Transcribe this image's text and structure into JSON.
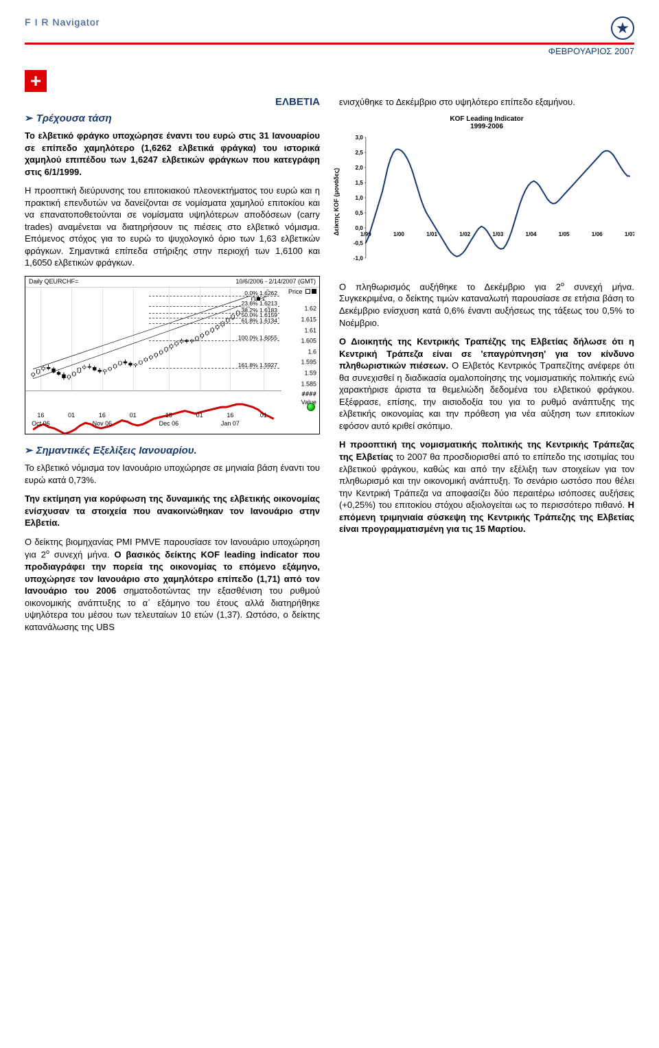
{
  "header": {
    "brand": "F I R  Navigator",
    "date": "ΦΕΒΡΟΥΑΡΙΟΣ 2007"
  },
  "country_label": "ΕΛΒΕΤΙΑ",
  "left": {
    "trend_title": "Τρέχουσα τάση",
    "p1_a": "Το ελβετικό φράγκο υποχώρησε έναντι του ευρώ στις 31 Ιανουαρίου σε επίπεδο χαμηλότερο (1,6262 ελβετικά φράγκα) του ιστορικά χαμηλού επιπέδου των 1,6247 ελβετικών φράγκων που κατεγράφη στις 6/1/1999.",
    "p2": "Η προοπτική διεύρυνσης του επιτοκιακού πλεονεκτήματος του ευρώ και η πρακτική επενδυτών να δανείζονται σε νομίσματα χαμηλού επιτοκίου και να επανατοποθετούνται σε νομίσματα υψηλότερων αποδόσεων (carry trades) αναμένεται να διατηρήσουν τις πιέσεις στο ελβετικό νόμισμα. Επόμενος στόχος για το ευρώ το ψυχολογικό όριο των 1,63 ελβετικών φράγκων. Σημαντικά επίπεδα στήριξης στην περιοχή των 1,6100 και 1,6050 ελβετικών φράγκων.",
    "dev_title": "Σημαντικές Εξελίξεις Ιανουαρίου.",
    "p3": "Το ελβετικό νόμισμα τον Ιανουάριο υποχώρησε σε μηνιαία βάση έναντι του ευρώ κατά 0,73%.",
    "p4": "Την εκτίμηση για κορύφωση της δυναμικής της ελβετικής οικονομίας ενίσχυσαν τα στοιχεία που ανακοινώθηκαν τον Ιανουάριο στην Ελβετία.",
    "p5_a": "Ο δείκτης βιομηχανίας PMI PMVE παρουσίασε τον Ιανουάριο υποχώρηση για 2",
    "p5_sup": "ο",
    "p5_b": " συνεχή μήνα. ",
    "p5_c": "Ο βασικός δείκτης KOF leading indicator που προδιαγράφει την πορεία της οικονομίας το επόμενο εξάμηνο, υποχώρησε τον Ιανουάριο στο χαμηλότερο επίπεδο (1,71) από τον Ιανουάριο του 2006",
    "p5_d": " σηματοδοτώντας την εξασθένιση του ρυθμού οικονομικής ανάπτυξης το α΄ εξάμηνο του έτους αλλά διατηρήθηκε υψηλότερα του μέσου των τελευταίων 10 ετών (1,37). Ωστόσο, ο δείκτης κατανάλωσης της UBS"
  },
  "right": {
    "p1": "ενισχύθηκε το Δεκέμβριο στο υψηλότερο επίπεδο εξαμήνου.",
    "p2_a": "Ο πληθωρισμός αυξήθηκε το Δεκέμβριο για 2",
    "p2_sup": "ο",
    "p2_b": " συνεχή μήνα. Συγκεκριμένα, ο δείκτης τιμών καταναλωτή παρουσίασε σε ετήσια βάση το Δεκέμβριο ενίσχυση κατά 0,6% έναντι αυξήσεως της τάξεως του 0,5% το Νοέμβριο.",
    "p3_a": "Ο Διοικητής της Κεντρικής Τραπέζης της Ελβετίας δήλωσε ότι η Κεντρική Τράπεζα είναι σε 'επαγρύπνηση' για τον κίνδυνο πληθωριστικών πιέσεων.",
    "p3_b": " Ο Ελβετός Κεντρικός Τραπεζίτης ανέφερε ότι θα συνεχισθεί η διαδικασία ομαλοποίησης της νομισματικής πολιτικής ενώ χαρακτήρισε άριστα τα θεμελιώδη δεδομένα του ελβετικού φράγκου. Εξέφρασε, επίσης, την αισιοδοξία του για το ρυθμό ανάπτυξης της ελβετικής οικονομίας και την πρόθεση για νέα αύξηση των επιτοκίων εφόσον αυτό κριθεί σκόπιμο.",
    "p4_a": "Η προοπτική της νομισματικής πολιτικής της Κεντρικής Τράπεζας της Ελβετίας",
    "p4_b": " το 2007 θα προσδιορισθεί από το επίπεδο της ισοτιμίας του ελβετικού φράγκου, καθώς και από την εξέλιξη των στοιχείων για τον πληθωρισμό και την οικονομική ανάπτυξη. Το σενάριο ωστόσο που θέλει την Κεντρική Τράπεζα να αποφασίζει δύο περαιτέρω ισόποσες αυξήσεις (+0,25%) του επιτοκίου στόχου αξιολογείται ως το περισσότερο πιθανό. ",
    "p4_c": "Η επόμενη τριμηνιαία σύσκεψη της Κεντρικής Τράπεζης της Ελβετίας είναι προγραμματισμένη για τις 15 Μαρτίου."
  },
  "price_chart": {
    "title_left": "Daily QEURCHF=",
    "title_right": "10/6/2006 - 2/14/2007 (GMT)",
    "price_label": "Price",
    "value_label": "Value",
    "hash": "####",
    "y_ticks": [
      {
        "v": 1.625,
        "label": ""
      },
      {
        "v": 1.62,
        "label": "1.62"
      },
      {
        "v": 1.615,
        "label": "1.615"
      },
      {
        "v": 1.61,
        "label": "1.61"
      },
      {
        "v": 1.605,
        "label": "1.605"
      },
      {
        "v": 1.6,
        "label": "1.6"
      },
      {
        "v": 1.595,
        "label": "1.595"
      },
      {
        "v": 1.59,
        "label": "1.59"
      },
      {
        "v": 1.585,
        "label": "1.585"
      }
    ],
    "ymin": 1.582,
    "ymax": 1.63,
    "fibs": [
      {
        "pct": "0.0%",
        "val": "1.6262",
        "v": 1.6262
      },
      {
        "pct": "23.6%",
        "val": "1.6213",
        "v": 1.6213
      },
      {
        "pct": "38.2%",
        "val": "1.6183",
        "v": 1.6183
      },
      {
        "pct": "50.0%",
        "val": "1.6159",
        "v": 1.6159
      },
      {
        "pct": "61.8%",
        "val": "1.6134",
        "v": 1.6134
      },
      {
        "pct": "100.0%",
        "val": "1.6055",
        "v": 1.6055
      },
      {
        "pct": "161.8%",
        "val": "1.5927",
        "v": 1.5927
      }
    ],
    "x_ticks": [
      {
        "d": "16",
        "m": "Oct 06",
        "x": 6
      },
      {
        "d": "01",
        "m": "",
        "x": 18
      },
      {
        "d": "16",
        "m": "Nov 06",
        "x": 30
      },
      {
        "d": "01",
        "m": "",
        "x": 42
      },
      {
        "d": "18",
        "m": "Dec 06",
        "x": 56
      },
      {
        "d": "01",
        "m": "",
        "x": 68
      },
      {
        "d": "16",
        "m": "Jan 07",
        "x": 80
      },
      {
        "d": "01",
        "m": "",
        "x": 93
      }
    ],
    "candles": [
      [
        3,
        1.589,
        1.5905,
        1.588,
        1.59
      ],
      [
        5,
        1.59,
        1.592,
        1.5895,
        1.5918
      ],
      [
        7,
        1.5918,
        1.5935,
        1.591,
        1.5928
      ],
      [
        9,
        1.5928,
        1.594,
        1.5915,
        1.5922
      ],
      [
        11,
        1.5922,
        1.593,
        1.59,
        1.5905
      ],
      [
        13,
        1.5905,
        1.5912,
        1.589,
        1.5895
      ],
      [
        15,
        1.5895,
        1.5905,
        1.587,
        1.5878
      ],
      [
        17,
        1.5878,
        1.5895,
        1.587,
        1.589
      ],
      [
        19,
        1.589,
        1.591,
        1.5885,
        1.5905
      ],
      [
        21,
        1.5905,
        1.5928,
        1.59,
        1.5925
      ],
      [
        23,
        1.5925,
        1.594,
        1.5918,
        1.5932
      ],
      [
        25,
        1.5932,
        1.5945,
        1.592,
        1.5928
      ],
      [
        27,
        1.5928,
        1.5935,
        1.591,
        1.5915
      ],
      [
        29,
        1.5915,
        1.5925,
        1.59,
        1.5908
      ],
      [
        31,
        1.5908,
        1.592,
        1.5895,
        1.5916
      ],
      [
        33,
        1.5916,
        1.593,
        1.591,
        1.5926
      ],
      [
        35,
        1.5926,
        1.5945,
        1.592,
        1.594
      ],
      [
        37,
        1.594,
        1.5958,
        1.5935,
        1.5955
      ],
      [
        39,
        1.5955,
        1.5965,
        1.594,
        1.5948
      ],
      [
        41,
        1.5948,
        1.5955,
        1.593,
        1.5938
      ],
      [
        43,
        1.5938,
        1.5948,
        1.5928,
        1.5944
      ],
      [
        45,
        1.5944,
        1.596,
        1.594,
        1.5958
      ],
      [
        47,
        1.5958,
        1.5975,
        1.5952,
        1.597
      ],
      [
        49,
        1.597,
        1.5985,
        1.5962,
        1.598
      ],
      [
        51,
        1.598,
        1.5998,
        1.5972,
        1.5992
      ],
      [
        53,
        1.5992,
        1.601,
        1.5985,
        1.6005
      ],
      [
        55,
        1.6005,
        1.6025,
        1.5998,
        1.602
      ],
      [
        57,
        1.602,
        1.6038,
        1.6012,
        1.6032
      ],
      [
        59,
        1.6032,
        1.605,
        1.6025,
        1.6045
      ],
      [
        61,
        1.6045,
        1.6062,
        1.6038,
        1.6055
      ],
      [
        63,
        1.6055,
        1.606,
        1.604,
        1.6048
      ],
      [
        65,
        1.6048,
        1.606,
        1.604,
        1.6056
      ],
      [
        67,
        1.6056,
        1.6075,
        1.605,
        1.607
      ],
      [
        69,
        1.607,
        1.6088,
        1.6062,
        1.6082
      ],
      [
        71,
        1.6082,
        1.61,
        1.6075,
        1.6095
      ],
      [
        73,
        1.6095,
        1.6115,
        1.6088,
        1.611
      ],
      [
        75,
        1.611,
        1.6128,
        1.6102,
        1.6122
      ],
      [
        77,
        1.6122,
        1.6145,
        1.6115,
        1.614
      ],
      [
        79,
        1.614,
        1.616,
        1.6132,
        1.6155
      ],
      [
        81,
        1.6155,
        1.6178,
        1.6148,
        1.6172
      ],
      [
        83,
        1.6172,
        1.6195,
        1.6165,
        1.619
      ],
      [
        85,
        1.619,
        1.6215,
        1.6182,
        1.6208
      ],
      [
        87,
        1.6208,
        1.6235,
        1.62,
        1.6228
      ],
      [
        89,
        1.6228,
        1.6262,
        1.622,
        1.6255
      ],
      [
        91,
        1.6255,
        1.6262,
        1.623,
        1.624
      ],
      [
        93,
        1.624,
        1.625,
        1.6218,
        1.6225
      ],
      [
        95,
        1.6225,
        1.6235,
        1.62,
        1.621
      ]
    ],
    "trend": [
      [
        3,
        1.5875
      ],
      [
        95,
        1.6262
      ]
    ],
    "trend2": [
      [
        3,
        1.592
      ],
      [
        95,
        1.629
      ]
    ],
    "rsi": [
      50,
      55,
      58,
      54,
      52,
      48,
      44,
      46,
      50,
      56,
      60,
      58,
      54,
      52,
      54,
      56,
      60,
      64,
      62,
      58,
      56,
      58,
      62,
      66,
      68,
      70,
      72,
      74,
      76,
      78,
      76,
      74,
      76,
      78,
      80,
      82,
      84,
      84,
      86,
      88,
      88,
      86,
      84,
      80,
      74,
      70,
      66
    ],
    "vol": [
      30,
      40,
      35,
      42,
      38,
      44,
      36,
      50,
      46,
      40,
      38,
      42,
      48,
      44,
      50,
      46,
      42,
      48,
      52,
      46,
      40,
      44,
      50,
      48,
      52,
      56,
      54,
      50,
      48,
      52,
      58,
      54,
      50,
      48,
      52,
      56,
      60,
      58,
      54,
      52,
      56,
      60,
      64,
      68,
      62,
      58,
      54
    ]
  },
  "kof_chart": {
    "title": "KOF Leading Indicator",
    "subtitle": "1999-2006",
    "ylabel": "Δείκτης KOF (μονάδες)",
    "ymin": -1.0,
    "ymax": 3.0,
    "y_ticks": [
      "3,0",
      "2,5",
      "2,0",
      "1,5",
      "1,0",
      "0,5",
      "0,0",
      "-0,5",
      "-1,0"
    ],
    "x_labels": [
      "1/99",
      "1/00",
      "1/01",
      "1/02",
      "1/03",
      "1/04",
      "1/05",
      "1/06",
      "1/07"
    ],
    "line_color": "#1a3a6e",
    "series": [
      -0.5,
      -0.3,
      0.0,
      0.3,
      0.6,
      0.9,
      1.2,
      1.6,
      2.0,
      2.3,
      2.5,
      2.6,
      2.6,
      2.55,
      2.45,
      2.3,
      2.1,
      1.85,
      1.55,
      1.25,
      0.95,
      0.7,
      0.5,
      0.35,
      0.2,
      0.05,
      -0.1,
      -0.25,
      -0.4,
      -0.55,
      -0.7,
      -0.82,
      -0.9,
      -0.95,
      -0.92,
      -0.85,
      -0.75,
      -0.6,
      -0.45,
      -0.3,
      -0.15,
      -0.02,
      0.05,
      0.0,
      -0.1,
      -0.25,
      -0.4,
      -0.55,
      -0.65,
      -0.7,
      -0.68,
      -0.55,
      -0.35,
      -0.1,
      0.2,
      0.5,
      0.8,
      1.05,
      1.25,
      1.4,
      1.5,
      1.55,
      1.5,
      1.4,
      1.25,
      1.1,
      0.95,
      0.85,
      0.8,
      0.82,
      0.9,
      1.0,
      1.1,
      1.2,
      1.3,
      1.4,
      1.5,
      1.6,
      1.7,
      1.8,
      1.9,
      2.0,
      2.1,
      2.2,
      2.3,
      2.4,
      2.5,
      2.55,
      2.55,
      2.5,
      2.4,
      2.25,
      2.1,
      1.95,
      1.82,
      1.72,
      1.71
    ]
  }
}
